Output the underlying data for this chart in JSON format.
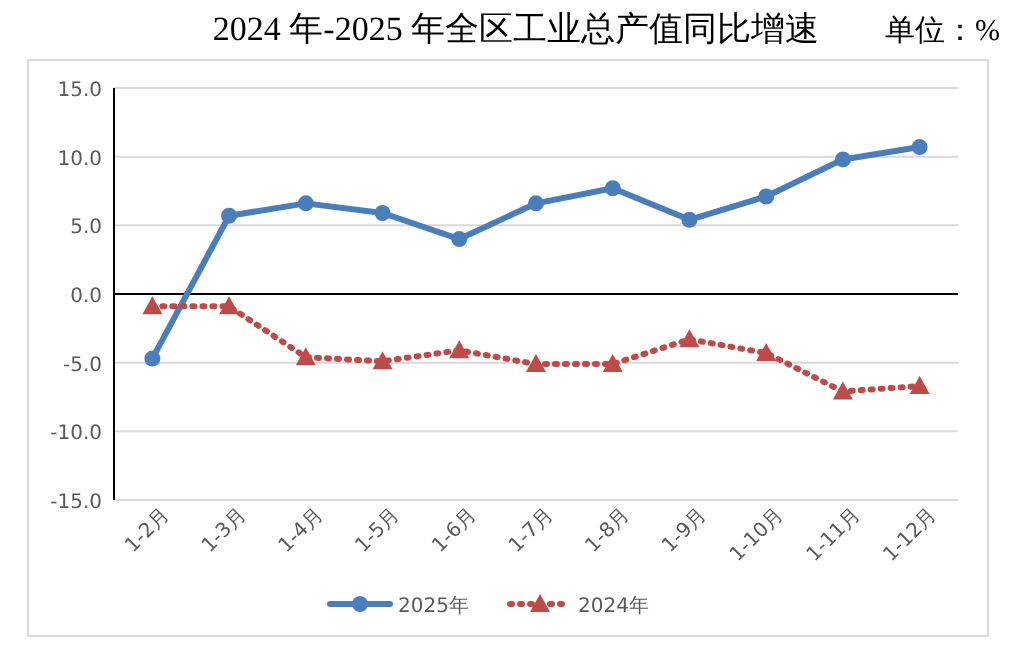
{
  "chart_data": {
    "type": "line",
    "title": "2024 年-2025 年全区工业总产值同比增速",
    "subtitle": "单位：%",
    "categories": [
      "1-2月",
      "1-3月",
      "1-4月",
      "1-5月",
      "1-6月",
      "1-7月",
      "1-8月",
      "1-9月",
      "1-10月",
      "1-11月",
      "1-12月"
    ],
    "series": [
      {
        "name": "2025年",
        "color": "#4a7ebb",
        "marker": "circle",
        "line_style": "solid",
        "values": [
          -4.7,
          5.7,
          6.6,
          5.9,
          4.0,
          6.6,
          7.7,
          5.4,
          7.1,
          9.8,
          10.7
        ]
      },
      {
        "name": "2024年",
        "color": "#be4b48",
        "marker": "triangle",
        "line_style": "dotted",
        "values": [
          -0.9,
          -0.9,
          -4.6,
          -4.9,
          -4.1,
          -5.1,
          -5.1,
          -3.3,
          -4.3,
          -7.1,
          -6.7
        ]
      }
    ],
    "ylim": [
      -15,
      15
    ],
    "yticks": [
      {
        "value": 15,
        "label": "15.0"
      },
      {
        "value": 10,
        "label": "10.0"
      },
      {
        "value": 5,
        "label": "5.0"
      },
      {
        "value": 0,
        "label": "0.0"
      },
      {
        "value": -5,
        "label": "-5.0"
      },
      {
        "value": -10,
        "label": "-10.0"
      },
      {
        "value": -15,
        "label": "-15.0"
      }
    ],
    "grid": "y",
    "legend": "bottom"
  }
}
